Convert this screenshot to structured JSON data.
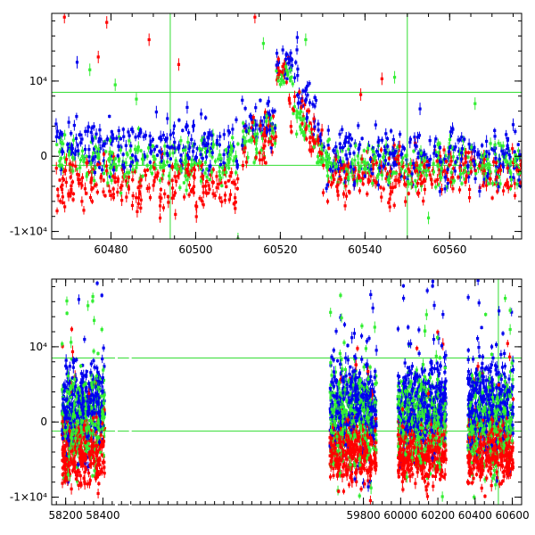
{
  "chart_data": [
    {
      "type": "scatter",
      "panel": "top",
      "x_range": [
        60466,
        60577
      ],
      "y_range": [
        -11000,
        19000
      ],
      "x_ticks": [
        60480,
        60500,
        60520,
        60540,
        60560
      ],
      "x_tick_labels": [
        "60480",
        "60500",
        "60520",
        "60540",
        "60560"
      ],
      "y_ticks": [
        -10000,
        0,
        10000
      ],
      "y_tick_labels": [
        "-1×10⁴",
        "0",
        "10⁴"
      ],
      "reference_lines": {
        "horizontal": [
          8500,
          -1200
        ],
        "vertical": [
          60494,
          60550
        ],
        "color": "#33dd33"
      },
      "series": [
        {
          "color": "#ff0000",
          "segments": [
            {
              "x_start": 60467,
              "x_end": 60510,
              "level": -3500,
              "spread": 2400
            },
            {
              "x_start": 60511,
              "x_end": 60519,
              "level": 3000,
              "spread": 2600
            },
            {
              "x_start": 60519,
              "x_end": 60522,
              "level": 11000,
              "spread": 1400
            },
            {
              "x_start": 60522,
              "x_end": 60530,
              "level": 4000,
              "spread": 2400
            },
            {
              "x_start": 60530,
              "x_end": 60577,
              "level": -2500,
              "spread": 2400
            }
          ],
          "outliers": [
            [
              60469,
              18500
            ],
            [
              60477,
              13200
            ],
            [
              60479,
              17800
            ],
            [
              60489,
              15500
            ],
            [
              60514,
              18500
            ],
            [
              60539,
              8200
            ],
            [
              60544,
              10300
            ],
            [
              60496,
              12200
            ]
          ]
        },
        {
          "color": "#0000ee",
          "segments": [
            {
              "x_start": 60467,
              "x_end": 60510,
              "level": 1500,
              "spread": 2400
            },
            {
              "x_start": 60511,
              "x_end": 60519,
              "level": 4500,
              "spread": 2400
            },
            {
              "x_start": 60519,
              "x_end": 60524,
              "level": 12500,
              "spread": 1500
            },
            {
              "x_start": 60524,
              "x_end": 60530,
              "level": 6000,
              "spread": 2200
            },
            {
              "x_start": 60530,
              "x_end": 60577,
              "level": 0,
              "spread": 2600
            }
          ],
          "outliers": [
            [
              60472,
              12500
            ],
            [
              60498,
              6500
            ],
            [
              60524,
              15800
            ],
            [
              60553,
              6300
            ],
            [
              60575,
              4200
            ]
          ]
        },
        {
          "color": "#33ee33",
          "segments": [
            {
              "x_start": 60467,
              "x_end": 60510,
              "level": -500,
              "spread": 2200
            },
            {
              "x_start": 60511,
              "x_end": 60519,
              "level": 2500,
              "spread": 2200
            },
            {
              "x_start": 60519,
              "x_end": 60523,
              "level": 10500,
              "spread": 1500
            },
            {
              "x_start": 60523,
              "x_end": 60530,
              "level": 3000,
              "spread": 2000
            },
            {
              "x_start": 60530,
              "x_end": 60577,
              "level": -1000,
              "spread": 2200
            }
          ],
          "outliers": [
            [
              60475,
              11500
            ],
            [
              60481,
              9500
            ],
            [
              60516,
              15000
            ],
            [
              60526,
              15500
            ],
            [
              60547,
              10500
            ],
            [
              60566,
              7000
            ],
            [
              60510,
              -11000
            ],
            [
              60555,
              -8200
            ],
            [
              60486,
              7600
            ]
          ]
        }
      ]
    },
    {
      "type": "scatter",
      "panel": "bottom",
      "x_range": [
        58125,
        60650
      ],
      "y_range": [
        -11000,
        19000
      ],
      "x_ticks": [
        58200,
        58400,
        59800,
        60000,
        60200,
        60400,
        60600
      ],
      "x_tick_labels": [
        "58200",
        "58400",
        "59800",
        "60000",
        "60200",
        "60400",
        "60600"
      ],
      "axis_breaks_at": [
        58470,
        58545
      ],
      "y_ticks": [
        -10000,
        0,
        10000
      ],
      "y_tick_labels": [
        "-1×10⁴",
        "0",
        "10⁴"
      ],
      "reference_lines": {
        "horizontal": [
          8500,
          -1200
        ],
        "vertical": [
          60525
        ],
        "color": "#33dd33"
      },
      "seasons": [
        {
          "x_start": 58180,
          "x_end": 58410
        },
        {
          "x_start": 59620,
          "x_end": 59870
        },
        {
          "x_start": 59985,
          "x_end": 60245
        },
        {
          "x_start": 60360,
          "x_end": 60605
        }
      ],
      "series": [
        {
          "color": "#ff0000",
          "level": -4000,
          "spread": 2800
        },
        {
          "color": "#0000ee",
          "level": 2500,
          "spread": 4000
        },
        {
          "color": "#33ee33",
          "level": 500,
          "spread": 4200
        }
      ]
    }
  ]
}
